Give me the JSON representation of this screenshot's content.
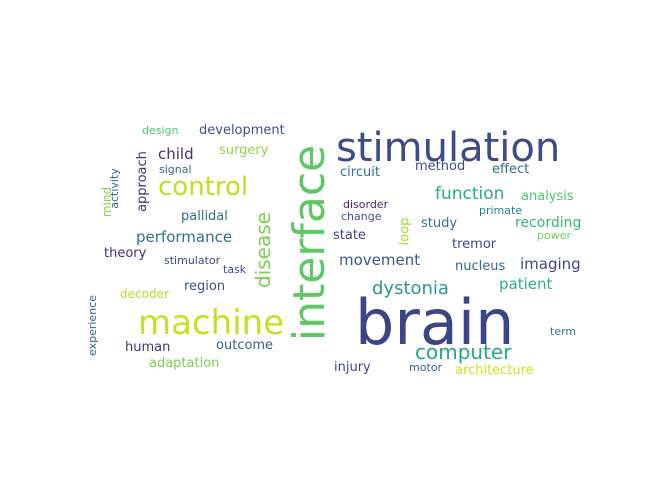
{
  "words": [
    {
      "text": "brain",
      "color": "#3b4688"
    },
    {
      "text": "interface",
      "color": "#5ec962"
    },
    {
      "text": "stimulation",
      "color": "#3e4a89"
    },
    {
      "text": "machine",
      "color": "#c8e020"
    },
    {
      "text": "control",
      "color": "#c2df23"
    },
    {
      "text": "disease",
      "color": "#7ad151"
    },
    {
      "text": "computer",
      "color": "#23a883"
    },
    {
      "text": "dystonia",
      "color": "#2a9a89"
    },
    {
      "text": "function",
      "color": "#27ad81"
    },
    {
      "text": "performance",
      "color": "#2d708e"
    },
    {
      "text": "movement",
      "color": "#38598c"
    },
    {
      "text": "imaging",
      "color": "#3f4788"
    },
    {
      "text": "patient",
      "color": "#2db27d"
    },
    {
      "text": "child",
      "color": "#482878"
    },
    {
      "text": "recording",
      "color": "#33b87a"
    },
    {
      "text": "development",
      "color": "#3b528b"
    },
    {
      "text": "surgery",
      "color": "#8fd744"
    },
    {
      "text": "circuit",
      "color": "#2c728e"
    },
    {
      "text": "method",
      "color": "#3d4e8a"
    },
    {
      "text": "effect",
      "color": "#2f6c8e"
    },
    {
      "text": "analysis",
      "color": "#50c46a"
    },
    {
      "text": "study",
      "color": "#2b758e"
    },
    {
      "text": "tremor",
      "color": "#3e4989"
    },
    {
      "text": "state",
      "color": "#424086"
    },
    {
      "text": "nucleus",
      "color": "#30698e"
    },
    {
      "text": "theory",
      "color": "#472c7a"
    },
    {
      "text": "pallidal",
      "color": "#2e6f8e"
    },
    {
      "text": "region",
      "color": "#3a538b"
    },
    {
      "text": "outcome",
      "color": "#355f8d"
    },
    {
      "text": "human",
      "color": "#46307e"
    },
    {
      "text": "injury",
      "color": "#404588"
    },
    {
      "text": "architecture",
      "color": "#d8e219"
    },
    {
      "text": "adaptation",
      "color": "#7ad151"
    },
    {
      "text": "decoder",
      "color": "#b5de2b"
    },
    {
      "text": "stimulator",
      "color": "#404688"
    },
    {
      "text": "task",
      "color": "#3d4d8a"
    },
    {
      "text": "motor",
      "color": "#31668e"
    },
    {
      "text": "term",
      "color": "#2a788e"
    },
    {
      "text": "design",
      "color": "#52c569"
    },
    {
      "text": "signal",
      "color": "#30698e"
    },
    {
      "text": "disorder",
      "color": "#482475"
    },
    {
      "text": "change",
      "color": "#3c508b"
    },
    {
      "text": "primate",
      "color": "#27808e"
    },
    {
      "text": "power",
      "color": "#6ccd5a"
    },
    {
      "text": "loop",
      "color": "#a5db36"
    },
    {
      "text": "approach",
      "color": "#46337f"
    },
    {
      "text": "activity",
      "color": "#33638d"
    },
    {
      "text": "mind",
      "color": "#86d549"
    },
    {
      "text": "experience",
      "color": "#31688e"
    }
  ]
}
